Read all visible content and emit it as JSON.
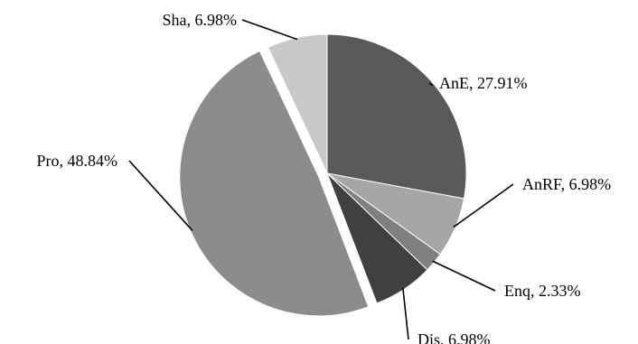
{
  "chart_data": {
    "type": "pie",
    "title": "",
    "legend": "none",
    "slices": [
      {
        "name": "AnE",
        "value": 27.91,
        "label": "AnE, 27.91%",
        "color": "#595959"
      },
      {
        "name": "AnRF",
        "value": 6.98,
        "label": "AnRF, 6.98%",
        "color": "#a6a6a6"
      },
      {
        "name": "Enq",
        "value": 2.33,
        "label": "Enq, 2.33%",
        "color": "#7f7f7f"
      },
      {
        "name": "Dis",
        "value": 6.98,
        "label": "Dis, 6.98%",
        "color": "#404040"
      },
      {
        "name": "Pro",
        "value": 48.84,
        "label": "Pro, 48.84%",
        "color": "#8c8c8c"
      },
      {
        "name": "Sha",
        "value": 6.98,
        "label": "Sha, 6.98%",
        "color": "#c8c8c8"
      }
    ],
    "start_angle_deg": 0,
    "direction": "clockwise",
    "exploded": [
      "Pro"
    ]
  }
}
